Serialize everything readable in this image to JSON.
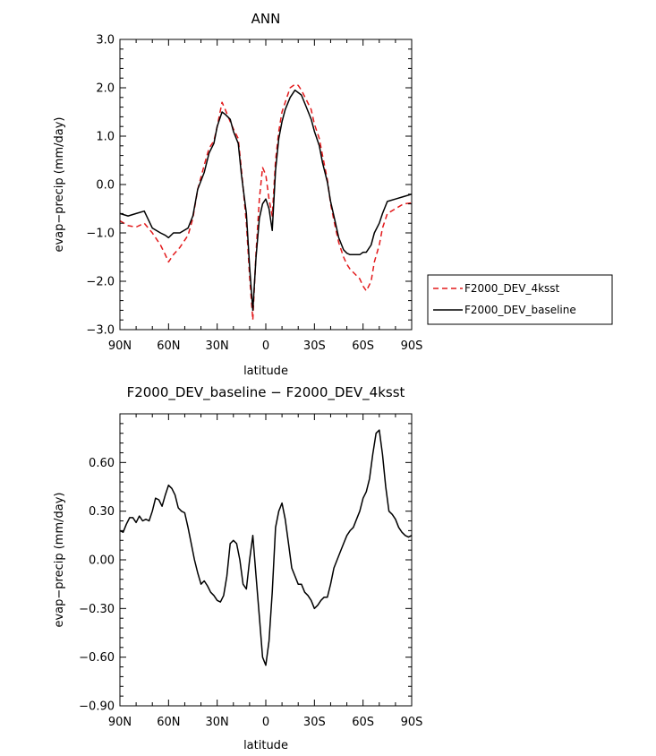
{
  "chart_data": [
    {
      "type": "line",
      "title": "ANN",
      "xlabel": "latitude",
      "ylabel": "evap−precip (mm/day)",
      "xlim": [
        -90,
        90
      ],
      "ylim": [
        -3.0,
        3.0
      ],
      "x_ticks": [
        -90,
        -60,
        -30,
        0,
        30,
        60,
        90
      ],
      "x_tick_labels": [
        "90N",
        "60N",
        "30N",
        "0",
        "30S",
        "60S",
        "90S"
      ],
      "y_ticks": [
        -3.0,
        -2.0,
        -1.0,
        0.0,
        1.0,
        2.0,
        3.0
      ],
      "y_tick_labels": [
        "−3.0",
        "−2.0",
        "−1.0",
        "0.0",
        "1.0",
        "2.0",
        "3.0"
      ],
      "legend": "right",
      "series": [
        {
          "name": "F2000_DEV_4ksst",
          "color": "#e31a1c",
          "dash": true,
          "x": [
            -90,
            -85,
            -80,
            -75,
            -70,
            -65,
            -62,
            -60,
            -57,
            -53,
            -48,
            -45,
            -42,
            -38,
            -35,
            -32,
            -30,
            -27,
            -25,
            -22,
            -20,
            -17,
            -15,
            -12,
            -10,
            -8,
            -6,
            -4,
            -2,
            0,
            2,
            4,
            6,
            8,
            10,
            12,
            15,
            18,
            20,
            22,
            25,
            28,
            30,
            33,
            35,
            38,
            40,
            43,
            45,
            48,
            50,
            52,
            55,
            58,
            60,
            62,
            65,
            67,
            70,
            72,
            75,
            80,
            85,
            90
          ],
          "y": [
            -0.75,
            -0.85,
            -0.88,
            -0.8,
            -1.0,
            -1.25,
            -1.45,
            -1.6,
            -1.45,
            -1.3,
            -1.05,
            -0.7,
            -0.1,
            0.4,
            0.75,
            0.9,
            1.2,
            1.7,
            1.55,
            1.3,
            1.15,
            0.95,
            0.3,
            -0.8,
            -1.9,
            -2.8,
            -1.4,
            -0.3,
            0.35,
            0.2,
            -0.3,
            -0.65,
            0.5,
            1.1,
            1.5,
            1.7,
            2.0,
            2.07,
            2.05,
            1.95,
            1.75,
            1.55,
            1.25,
            0.95,
            0.6,
            0.1,
            -0.4,
            -0.9,
            -1.2,
            -1.5,
            -1.65,
            -1.75,
            -1.85,
            -1.95,
            -2.1,
            -2.2,
            -2.0,
            -1.6,
            -1.25,
            -0.9,
            -0.6,
            -0.5,
            -0.4,
            -0.38
          ]
        },
        {
          "name": "F2000_DEV_baseline",
          "color": "#000000",
          "dash": false,
          "x": [
            -90,
            -85,
            -80,
            -75,
            -70,
            -65,
            -62,
            -60,
            -57,
            -53,
            -48,
            -45,
            -42,
            -38,
            -35,
            -32,
            -30,
            -27,
            -25,
            -22,
            -20,
            -17,
            -15,
            -12,
            -10,
            -8,
            -6,
            -4,
            -2,
            0,
            2,
            4,
            6,
            8,
            10,
            12,
            15,
            18,
            20,
            22,
            25,
            28,
            30,
            33,
            35,
            38,
            40,
            43,
            45,
            48,
            50,
            52,
            55,
            58,
            60,
            62,
            65,
            67,
            70,
            72,
            75,
            80,
            85,
            90
          ],
          "y": [
            -0.6,
            -0.65,
            -0.6,
            -0.55,
            -0.9,
            -1.0,
            -1.05,
            -1.1,
            -1.0,
            -1.0,
            -0.9,
            -0.65,
            -0.1,
            0.25,
            0.65,
            0.85,
            1.2,
            1.5,
            1.45,
            1.35,
            1.1,
            0.85,
            0.2,
            -0.6,
            -1.7,
            -2.6,
            -1.5,
            -0.7,
            -0.4,
            -0.3,
            -0.5,
            -0.95,
            0.3,
            0.95,
            1.3,
            1.55,
            1.8,
            1.95,
            1.9,
            1.85,
            1.6,
            1.35,
            1.1,
            0.8,
            0.45,
            0.05,
            -0.35,
            -0.8,
            -1.1,
            -1.35,
            -1.42,
            -1.45,
            -1.45,
            -1.45,
            -1.4,
            -1.4,
            -1.25,
            -1.0,
            -0.8,
            -0.6,
            -0.35,
            -0.3,
            -0.25,
            -0.2
          ]
        }
      ]
    },
    {
      "type": "line",
      "title": "F2000_DEV_baseline − F2000_DEV_4ksst",
      "xlabel": "latitude",
      "ylabel": "evap−precip (mm/day)",
      "xlim": [
        -90,
        90
      ],
      "ylim": [
        -0.9,
        0.9
      ],
      "x_ticks": [
        -90,
        -60,
        -30,
        0,
        30,
        60,
        90
      ],
      "x_tick_labels": [
        "90N",
        "60N",
        "30N",
        "0",
        "30S",
        "60S",
        "90S"
      ],
      "y_ticks": [
        -0.9,
        -0.6,
        -0.3,
        0.0,
        0.3,
        0.6
      ],
      "y_tick_labels": [
        "−0.90",
        "−0.60",
        "−0.30",
        "0.00",
        "0.30",
        "0.60"
      ],
      "series": [
        {
          "color": "#000000",
          "dash": false,
          "x": [
            -90,
            -88,
            -86,
            -84,
            -82,
            -80,
            -78,
            -76,
            -74,
            -72,
            -70,
            -68,
            -66,
            -64,
            -62,
            -60,
            -58,
            -56,
            -54,
            -52,
            -50,
            -48,
            -46,
            -44,
            -42,
            -40,
            -38,
            -36,
            -34,
            -32,
            -30,
            -28,
            -26,
            -24,
            -22,
            -20,
            -18,
            -16,
            -14,
            -12,
            -10,
            -8,
            -6,
            -4,
            -2,
            0,
            2,
            4,
            6,
            8,
            10,
            12,
            14,
            16,
            18,
            20,
            22,
            24,
            26,
            28,
            30,
            32,
            34,
            36,
            38,
            40,
            42,
            44,
            46,
            48,
            50,
            52,
            54,
            56,
            58,
            60,
            62,
            64,
            66,
            68,
            70,
            72,
            74,
            76,
            78,
            80,
            82,
            84,
            86,
            88,
            90
          ],
          "y": [
            0.18,
            0.17,
            0.22,
            0.26,
            0.26,
            0.23,
            0.27,
            0.24,
            0.25,
            0.24,
            0.3,
            0.38,
            0.37,
            0.33,
            0.4,
            0.46,
            0.44,
            0.4,
            0.32,
            0.3,
            0.29,
            0.2,
            0.1,
            0.0,
            -0.08,
            -0.15,
            -0.13,
            -0.16,
            -0.2,
            -0.22,
            -0.25,
            -0.26,
            -0.22,
            -0.1,
            0.1,
            0.12,
            0.1,
            0.0,
            -0.15,
            -0.18,
            0.0,
            0.15,
            -0.1,
            -0.35,
            -0.6,
            -0.65,
            -0.5,
            -0.2,
            0.2,
            0.3,
            0.35,
            0.25,
            0.1,
            -0.05,
            -0.1,
            -0.15,
            -0.15,
            -0.2,
            -0.22,
            -0.25,
            -0.3,
            -0.28,
            -0.25,
            -0.23,
            -0.23,
            -0.15,
            -0.05,
            0.0,
            0.05,
            0.1,
            0.15,
            0.18,
            0.2,
            0.25,
            0.3,
            0.38,
            0.42,
            0.5,
            0.65,
            0.78,
            0.8,
            0.65,
            0.45,
            0.3,
            0.28,
            0.25,
            0.2,
            0.17,
            0.15,
            0.14,
            0.15
          ]
        }
      ]
    }
  ]
}
